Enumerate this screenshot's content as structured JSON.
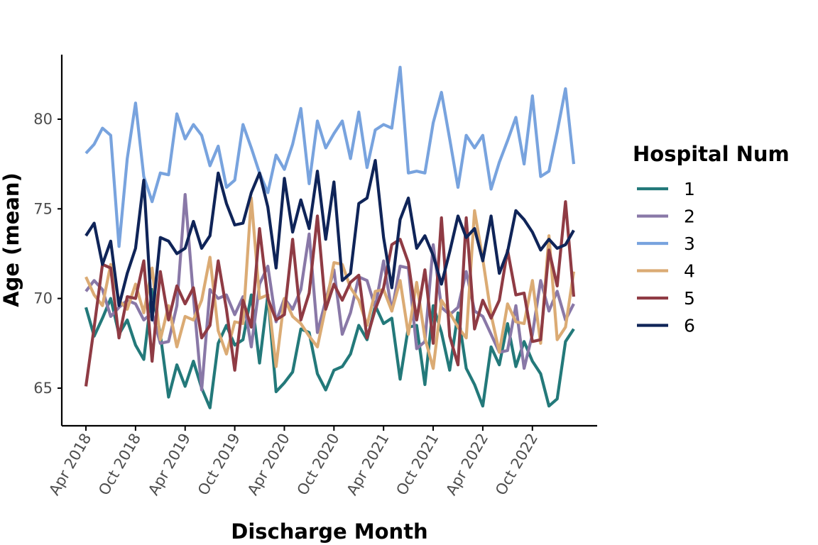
{
  "chart_data": {
    "type": "line",
    "xlabel": "Discharge Month",
    "ylabel": "Age (mean)",
    "legend_title": "Hospital Num",
    "legend_position": "right",
    "grid": false,
    "ylim": [
      62.9,
      83.6
    ],
    "x_start": "2018-04",
    "x_end": "2023-03",
    "x_tick_labels": [
      "Apr 2018",
      "Oct 2018",
      "Apr 2019",
      "Oct 2019",
      "Apr 2020",
      "Oct 2020",
      "Apr 2021",
      "Oct 2021",
      "Apr 2022",
      "Oct 2022"
    ],
    "x_tick_months": [
      "2018-04",
      "2018-10",
      "2019-04",
      "2019-10",
      "2020-04",
      "2020-10",
      "2021-04",
      "2021-10",
      "2022-04",
      "2022-10"
    ],
    "y_ticks": [
      65,
      70,
      75,
      80
    ],
    "x": [
      "2018-04",
      "2018-05",
      "2018-06",
      "2018-07",
      "2018-08",
      "2018-09",
      "2018-10",
      "2018-11",
      "2018-12",
      "2019-01",
      "2019-02",
      "2019-03",
      "2019-04",
      "2019-05",
      "2019-06",
      "2019-07",
      "2019-08",
      "2019-09",
      "2019-10",
      "2019-11",
      "2019-12",
      "2020-01",
      "2020-02",
      "2020-03",
      "2020-04",
      "2020-05",
      "2020-06",
      "2020-07",
      "2020-08",
      "2020-09",
      "2020-10",
      "2020-11",
      "2020-12",
      "2021-01",
      "2021-02",
      "2021-03",
      "2021-04",
      "2021-05",
      "2021-06",
      "2021-07",
      "2021-08",
      "2021-09",
      "2021-10",
      "2021-11",
      "2021-12",
      "2022-01",
      "2022-02",
      "2022-03",
      "2022-04",
      "2022-05",
      "2022-06",
      "2022-07",
      "2022-08",
      "2022-09",
      "2022-10",
      "2022-11",
      "2022-12",
      "2023-01",
      "2023-02",
      "2023-03"
    ],
    "series": [
      {
        "name": "1",
        "color": "#23797a",
        "values": [
          69.5,
          67.9,
          68.9,
          70.0,
          68.0,
          68.8,
          67.4,
          66.6,
          70.5,
          68.0,
          64.5,
          66.3,
          65.1,
          66.5,
          65.0,
          63.9,
          67.5,
          68.5,
          67.4,
          67.7,
          70.2,
          66.4,
          70.2,
          64.8,
          65.3,
          65.9,
          68.3,
          68.1,
          65.8,
          64.9,
          66.0,
          66.2,
          66.9,
          68.5,
          67.7,
          69.6,
          68.6,
          68.9,
          65.5,
          68.4,
          68.5,
          65.2,
          69.6,
          68.1,
          66.0,
          69.2,
          66.1,
          65.2,
          64.0,
          67.3,
          66.3,
          68.6,
          66.2,
          67.6,
          66.5,
          65.8,
          64.0,
          64.4,
          67.6,
          68.3
        ]
      },
      {
        "name": "2",
        "color": "#8978a7",
        "values": [
          70.4,
          71.0,
          70.5,
          69.0,
          69.5,
          69.9,
          69.7,
          68.8,
          69.2,
          67.5,
          67.6,
          69.6,
          75.8,
          70.1,
          64.9,
          70.5,
          70.0,
          70.2,
          69.1,
          70.1,
          67.3,
          70.8,
          71.8,
          68.7,
          70.0,
          69.4,
          70.5,
          73.6,
          68.1,
          69.9,
          71.6,
          68.0,
          69.2,
          71.2,
          71.0,
          69.5,
          72.1,
          69.3,
          71.8,
          71.7,
          67.2,
          67.6,
          73.0,
          69.5,
          69.1,
          69.5,
          71.5,
          69.3,
          69.0,
          68.0,
          67.0,
          67.1,
          69.6,
          66.1,
          68.0,
          71.0,
          69.3,
          70.4,
          68.8,
          69.7
        ]
      },
      {
        "name": "3",
        "color": "#78a3de",
        "values": [
          78.1,
          78.6,
          79.5,
          79.1,
          72.9,
          77.8,
          80.9,
          76.8,
          75.4,
          77.0,
          76.9,
          80.3,
          78.9,
          79.7,
          79.1,
          77.4,
          78.5,
          76.2,
          76.6,
          79.7,
          78.4,
          77.0,
          75.9,
          78.0,
          77.2,
          78.6,
          80.6,
          76.4,
          79.9,
          78.4,
          79.2,
          79.9,
          77.8,
          80.4,
          77.3,
          79.4,
          79.7,
          79.5,
          82.9,
          77.0,
          77.1,
          77.0,
          79.8,
          81.5,
          78.9,
          76.2,
          79.1,
          78.4,
          79.1,
          76.1,
          77.6,
          78.8,
          80.1,
          77.5,
          81.3,
          76.8,
          77.1,
          79.3,
          81.7,
          77.5
        ]
      },
      {
        "name": "4",
        "color": "#dbab74",
        "values": [
          71.2,
          70.2,
          69.6,
          71.9,
          69.9,
          69.4,
          70.8,
          69.2,
          71.7,
          67.7,
          69.6,
          67.3,
          69.0,
          68.8,
          69.9,
          72.3,
          68.2,
          66.9,
          68.7,
          68.6,
          75.6,
          70.0,
          70.2,
          66.2,
          70.0,
          69.0,
          68.6,
          67.9,
          67.3,
          69.5,
          72.0,
          71.9,
          70.6,
          69.9,
          68.5,
          70.4,
          70.5,
          69.3,
          71.0,
          68.0,
          70.9,
          67.8,
          66.1,
          69.9,
          69.2,
          68.4,
          67.8,
          74.9,
          72.2,
          69.1,
          67.0,
          69.7,
          68.7,
          68.6,
          71.0,
          67.5,
          73.5,
          67.7,
          68.4,
          71.5
        ]
      },
      {
        "name": "5",
        "color": "#8f3b44",
        "values": [
          65.1,
          68.4,
          71.9,
          71.7,
          67.8,
          70.1,
          70.0,
          72.1,
          66.5,
          71.5,
          68.8,
          70.7,
          69.7,
          70.6,
          67.8,
          68.5,
          72.1,
          69.4,
          66.0,
          69.9,
          68.4,
          73.9,
          70.0,
          68.8,
          69.1,
          73.3,
          68.8,
          70.3,
          74.6,
          69.4,
          70.8,
          69.9,
          70.9,
          71.3,
          67.8,
          69.4,
          70.6,
          73.0,
          73.3,
          72.0,
          68.8,
          71.6,
          67.5,
          74.5,
          67.9,
          66.3,
          74.5,
          68.3,
          69.9,
          68.9,
          69.9,
          72.7,
          70.2,
          70.3,
          67.6,
          67.7,
          72.7,
          70.7,
          75.4,
          70.1
        ]
      },
      {
        "name": "6",
        "color": "#0f2458",
        "values": [
          73.5,
          74.2,
          71.9,
          73.2,
          69.6,
          71.4,
          72.8,
          76.6,
          68.8,
          73.4,
          73.2,
          72.5,
          72.8,
          74.3,
          72.8,
          73.5,
          77.0,
          75.3,
          74.1,
          74.2,
          75.9,
          77.0,
          75.1,
          71.7,
          76.7,
          73.7,
          75.5,
          73.9,
          77.1,
          73.3,
          76.5,
          71.0,
          71.4,
          75.3,
          75.6,
          77.7,
          73.4,
          70.6,
          74.4,
          75.6,
          72.8,
          73.5,
          72.4,
          70.8,
          72.6,
          74.6,
          73.4,
          73.9,
          72.1,
          74.6,
          71.4,
          72.6,
          74.9,
          74.4,
          73.7,
          72.7,
          73.3,
          72.8,
          73.0,
          73.8
        ]
      }
    ]
  }
}
